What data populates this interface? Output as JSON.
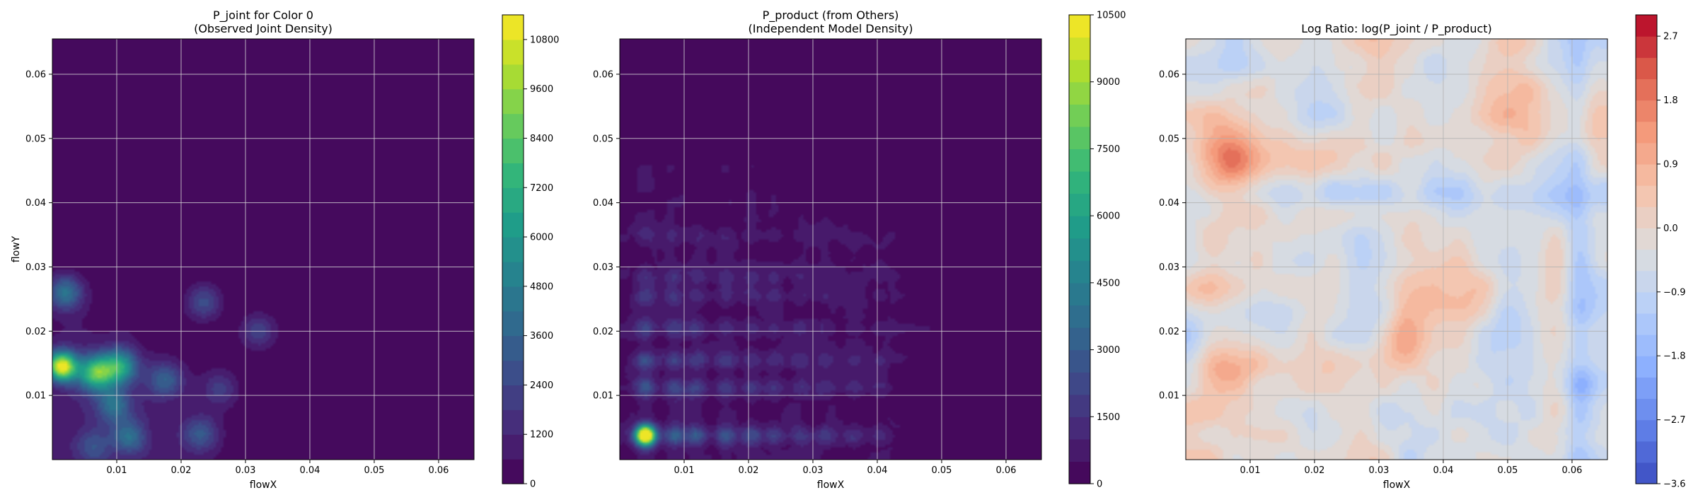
{
  "chart_data": [
    {
      "type": "heatmap",
      "title": "P_joint for Color 0",
      "subtitle": "(Observed Joint Density)",
      "xlabel": "flowX",
      "ylabel": "flowY",
      "x_ticks": [
        "0.01",
        "0.02",
        "0.03",
        "0.04",
        "0.05",
        "0.06"
      ],
      "y_ticks": [
        "0.01",
        "0.02",
        "0.03",
        "0.04",
        "0.05",
        "0.06"
      ],
      "xlim": [
        0.0,
        0.0655
      ],
      "ylim": [
        0.0,
        0.0655
      ],
      "grid": true,
      "colormap": "viridis",
      "colorbar": {
        "min": 0,
        "max": 11400,
        "ticks": [
          "0",
          "1200",
          "2400",
          "3600",
          "4800",
          "6000",
          "7200",
          "8400",
          "9600",
          "10800"
        ]
      },
      "peaks": [
        {
          "x": 0.0015,
          "y": 0.0145,
          "value": 10800
        },
        {
          "x": 0.0068,
          "y": 0.0135,
          "value": 7800
        },
        {
          "x": 0.0105,
          "y": 0.0145,
          "value": 6400
        },
        {
          "x": 0.002,
          "y": 0.026,
          "value": 4200
        },
        {
          "x": 0.0095,
          "y": 0.0085,
          "value": 3600
        },
        {
          "x": 0.012,
          "y": 0.0035,
          "value": 3200
        },
        {
          "x": 0.0175,
          "y": 0.0125,
          "value": 3000
        },
        {
          "x": 0.023,
          "y": 0.004,
          "value": 2800
        },
        {
          "x": 0.0235,
          "y": 0.0245,
          "value": 2600
        },
        {
          "x": 0.032,
          "y": 0.02,
          "value": 2200
        },
        {
          "x": 0.006,
          "y": 0.002,
          "value": 2000
        },
        {
          "x": 0.026,
          "y": 0.011,
          "value": 1800
        }
      ]
    },
    {
      "type": "heatmap",
      "title": "P_product (from Others)",
      "subtitle": "(Independent Model Density)",
      "xlabel": "flowX",
      "ylabel": "",
      "x_ticks": [
        "0.01",
        "0.02",
        "0.03",
        "0.04",
        "0.05",
        "0.06"
      ],
      "y_ticks": [
        "0.01",
        "0.02",
        "0.03",
        "0.04",
        "0.05",
        "0.06"
      ],
      "xlim": [
        0.0,
        0.0655
      ],
      "ylim": [
        0.0,
        0.0655
      ],
      "grid": true,
      "colormap": "viridis",
      "colorbar": {
        "min": 0,
        "max": 10500,
        "ticks": [
          "0",
          "1500",
          "3000",
          "4500",
          "6000",
          "7500",
          "9000",
          "10500"
        ]
      },
      "peaks": [
        {
          "x": 0.004,
          "y": 0.0038,
          "value": 10200
        }
      ],
      "marginal_x_peaks": [
        0.004,
        0.0085,
        0.012,
        0.0165,
        0.0205,
        0.024,
        0.028,
        0.032,
        0.0365,
        0.0405
      ],
      "marginal_y_peaks": [
        0.0038,
        0.0112,
        0.0155,
        0.0205,
        0.0255,
        0.0285,
        0.035
      ]
    },
    {
      "type": "heatmap",
      "title": "Log Ratio: log(P_joint / P_product)",
      "subtitle": "",
      "xlabel": "flowX",
      "ylabel": "",
      "x_ticks": [
        "0.01",
        "0.02",
        "0.03",
        "0.04",
        "0.05",
        "0.06"
      ],
      "y_ticks": [
        "0.01",
        "0.02",
        "0.03",
        "0.04",
        "0.05",
        "0.06"
      ],
      "xlim": [
        0.0,
        0.0655
      ],
      "ylim": [
        0.0,
        0.0655
      ],
      "grid": true,
      "colormap": "coolwarm",
      "colorbar": {
        "min": -3.6,
        "max": 3.0,
        "ticks": [
          "−3.6",
          "−2.7",
          "−1.8",
          "−0.9",
          "0.0",
          "0.9",
          "1.8",
          "2.7"
        ]
      }
    }
  ]
}
